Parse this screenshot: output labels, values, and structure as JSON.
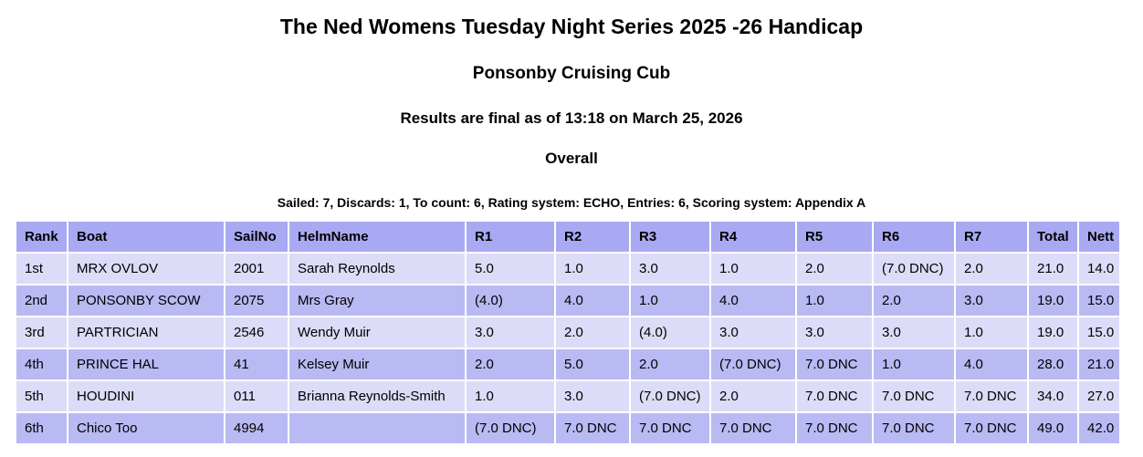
{
  "page": {
    "title": "The Ned Womens Tuesday Night Series 2025 -26 Handicap",
    "club": "Ponsonby Cruising Cub",
    "status_line": "Results are final as of 13:18 on March 25, 2026",
    "section": "Overall",
    "series_summary": "Sailed: 7, Discards: 1, To count: 6, Rating system: ECHO, Entries: 6, Scoring system: Appendix A"
  },
  "colors": {
    "header_bg": "#a9a9f3",
    "row_light_bg": "#dcdcf8",
    "row_dark_bg": "#b9b9f3",
    "text": "#000000"
  },
  "results_table": {
    "columns": [
      "Rank",
      "Boat",
      "SailNo",
      "HelmName",
      "R1",
      "R2",
      "R3",
      "R4",
      "R5",
      "R6",
      "R7",
      "Total",
      "Nett"
    ],
    "rows": [
      [
        "1st",
        "MRX OVLOV",
        "2001",
        "Sarah Reynolds",
        "5.0",
        "1.0",
        "3.0",
        "1.0",
        "2.0",
        "(7.0 DNC)",
        "2.0",
        "21.0",
        "14.0"
      ],
      [
        "2nd",
        "PONSONBY SCOW",
        "2075",
        "Mrs Gray",
        "(4.0)",
        "4.0",
        "1.0",
        "4.0",
        "1.0",
        "2.0",
        "3.0",
        "19.0",
        "15.0"
      ],
      [
        "3rd",
        "PARTRICIAN",
        "2546",
        "Wendy Muir",
        "3.0",
        "2.0",
        "(4.0)",
        "3.0",
        "3.0",
        "3.0",
        "1.0",
        "19.0",
        "15.0"
      ],
      [
        "4th",
        "PRINCE HAL",
        "41",
        "Kelsey Muir",
        "2.0",
        "5.0",
        "2.0",
        "(7.0 DNC)",
        "7.0 DNC",
        "1.0",
        "4.0",
        "28.0",
        "21.0"
      ],
      [
        "5th",
        "HOUDINI",
        "011",
        "Brianna Reynolds-Smith",
        "1.0",
        "3.0",
        "(7.0 DNC)",
        "2.0",
        "7.0 DNC",
        "7.0 DNC",
        "7.0 DNC",
        "34.0",
        "27.0"
      ],
      [
        "6th",
        "Chico Too",
        "4994",
        "",
        "(7.0 DNC)",
        "7.0 DNC",
        "7.0 DNC",
        "7.0 DNC",
        "7.0 DNC",
        "7.0 DNC",
        "7.0 DNC",
        "49.0",
        "42.0"
      ]
    ]
  }
}
